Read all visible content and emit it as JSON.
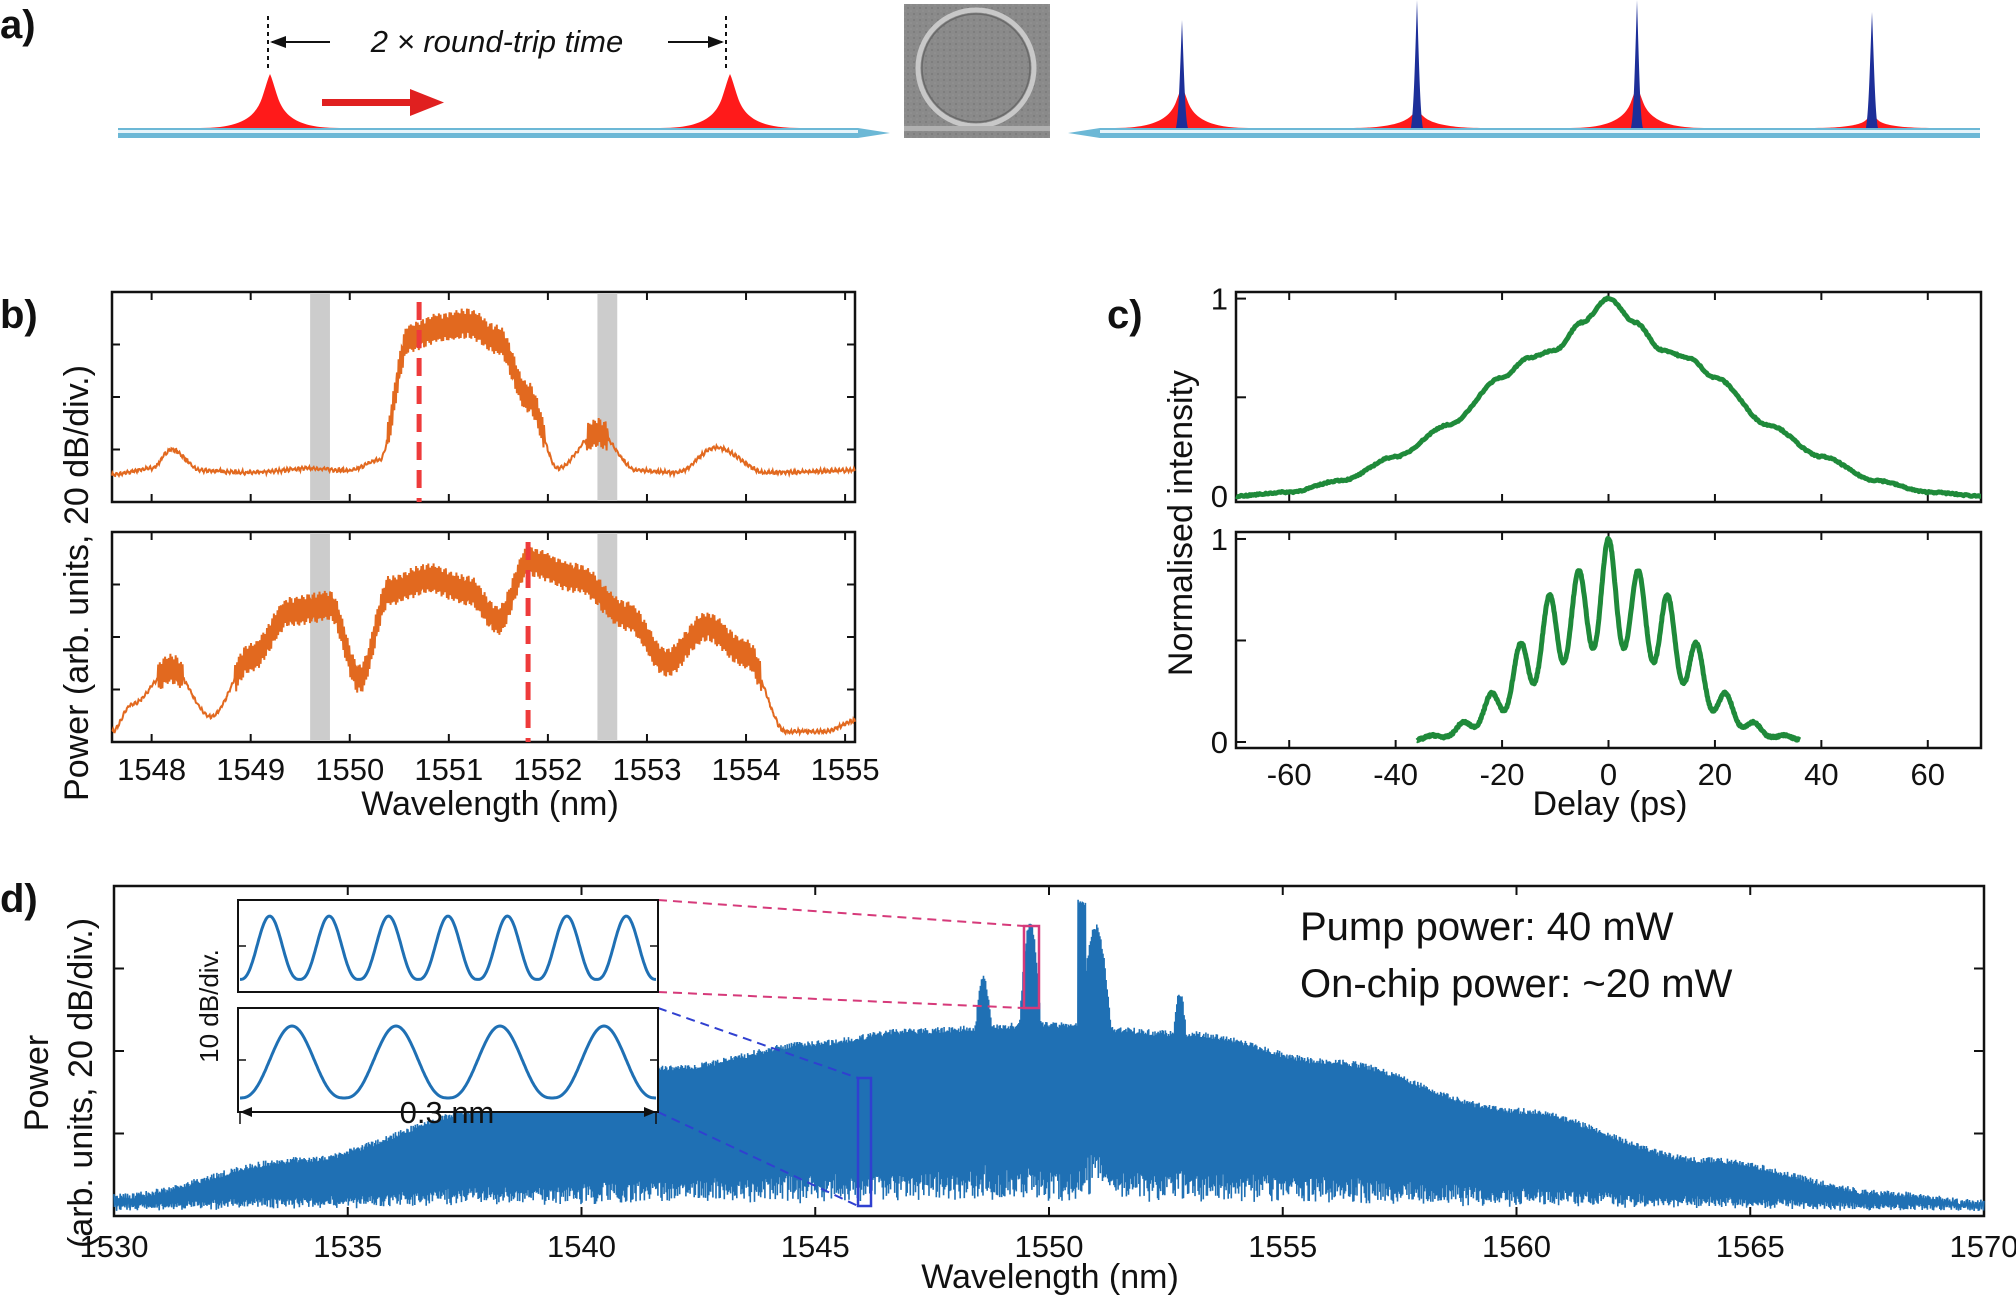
{
  "panels": {
    "a": "a)",
    "b": "b)",
    "c": "c)",
    "d": "d)"
  },
  "colors": {
    "spectrum": "#e2691f",
    "autocorr": "#1f8a3a",
    "comb": "#1f70b4",
    "pulse_red": "#ff1a1a",
    "pulse_blue": "#1d2f99",
    "gray_band": "#cccccc",
    "red_dash": "#ee3b3b",
    "inset_magenta": "#d63a7a",
    "inset_blue": "#3040d0",
    "waveguide": "#6cb8d6"
  },
  "panel_a": {
    "annotation": "2 × round-trip time",
    "arrow_icon": "right-arrow-icon",
    "ring_icon": "microring-resonator-icon"
  },
  "chart_data": [
    {
      "id": "b-top",
      "type": "line",
      "series_color": "#e2691f",
      "xlim": [
        1547.6,
        1555.1
      ],
      "gray_bands": [
        [
          1549.6,
          1549.8
        ],
        [
          1552.5,
          1552.7
        ]
      ],
      "pump_marker_nm": 1550.7,
      "envelope_nm": [
        1547.6,
        1548.0,
        1548.2,
        1548.5,
        1549.0,
        1549.6,
        1550.0,
        1550.3,
        1550.6,
        1550.9,
        1551.2,
        1551.5,
        1551.8,
        1552.1,
        1552.5,
        1552.9,
        1553.3,
        1553.7,
        1554.2,
        1555.1
      ],
      "envelope_level": [
        0.13,
        0.16,
        0.25,
        0.15,
        0.14,
        0.16,
        0.15,
        0.2,
        0.78,
        0.83,
        0.85,
        0.77,
        0.5,
        0.16,
        0.33,
        0.15,
        0.14,
        0.26,
        0.14,
        0.15
      ],
      "ylabel": "Power (arb. units, 20 dB/div.)"
    },
    {
      "id": "b-bottom",
      "type": "line",
      "series_color": "#e2691f",
      "xlim": [
        1547.6,
        1555.1
      ],
      "xticks": [
        1548,
        1549,
        1550,
        1551,
        1552,
        1553,
        1554,
        1555
      ],
      "xlabel": "Wavelength (nm)",
      "gray_bands": [
        [
          1549.6,
          1549.8
        ],
        [
          1552.5,
          1552.7
        ]
      ],
      "pump_marker_nm": 1551.8,
      "envelope_nm": [
        1547.6,
        1547.8,
        1548.2,
        1548.6,
        1549.0,
        1549.4,
        1549.8,
        1550.1,
        1550.4,
        1550.8,
        1551.2,
        1551.5,
        1551.8,
        1552.3,
        1552.8,
        1553.2,
        1553.6,
        1554.0,
        1554.4,
        1554.8,
        1555.1
      ],
      "envelope_level": [
        0.05,
        0.18,
        0.35,
        0.12,
        0.4,
        0.62,
        0.65,
        0.3,
        0.72,
        0.78,
        0.72,
        0.58,
        0.86,
        0.78,
        0.6,
        0.38,
        0.55,
        0.42,
        0.05,
        0.05,
        0.1
      ]
    },
    {
      "id": "c-top",
      "type": "line",
      "series_color": "#1f8a3a",
      "xlim": [
        -70,
        70
      ],
      "ylim": [
        0,
        1
      ],
      "yticks": [
        0,
        1
      ],
      "x": [
        -70,
        -60,
        -50,
        -40,
        -30,
        -20,
        -15,
        -10,
        -5,
        0,
        5,
        10,
        15,
        20,
        30,
        40,
        50,
        60,
        70
      ],
      "y": [
        0.0,
        0.02,
        0.08,
        0.2,
        0.36,
        0.6,
        0.7,
        0.74,
        0.88,
        1.0,
        0.88,
        0.74,
        0.7,
        0.6,
        0.36,
        0.2,
        0.08,
        0.02,
        0.0
      ],
      "ylabel": "Normalised intensity"
    },
    {
      "id": "c-bottom",
      "type": "line",
      "series_color": "#1f8a3a",
      "xlim": [
        -70,
        70
      ],
      "ylim": [
        0,
        1
      ],
      "xticks": [
        -60,
        -40,
        -20,
        0,
        20,
        40,
        60
      ],
      "yticks": [
        0,
        1
      ],
      "xlabel": "Delay (ps)",
      "fringe_period_ps": 5.6,
      "envelope_x": [
        -36,
        -30,
        -25,
        -20,
        -15,
        -10,
        -5,
        0,
        5,
        10,
        15,
        20,
        25,
        30,
        36
      ],
      "envelope_y": [
        0.02,
        0.05,
        0.15,
        0.3,
        0.55,
        0.75,
        0.85,
        1.0,
        0.85,
        0.75,
        0.55,
        0.3,
        0.15,
        0.05,
        0.02
      ]
    },
    {
      "id": "d",
      "type": "line",
      "series_color": "#1f70b4",
      "xlim": [
        1530,
        1570
      ],
      "xticks": [
        1530,
        1535,
        1540,
        1545,
        1550,
        1555,
        1560,
        1565,
        1570
      ],
      "xlabel": "Wavelength (nm)",
      "ylabel_1": "Power",
      "ylabel_2": "(arb. units, 20 dB/div.)",
      "annotations": [
        "Pump power: 40 mW",
        "On-chip power: ~20 mW"
      ],
      "comb_envelope_nm": [
        1530,
        1534,
        1538,
        1542,
        1545,
        1547,
        1550,
        1553,
        1556,
        1560,
        1564,
        1568,
        1570
      ],
      "comb_envelope_level": [
        0.04,
        0.16,
        0.32,
        0.46,
        0.54,
        0.58,
        0.6,
        0.57,
        0.48,
        0.32,
        0.16,
        0.05,
        0.02
      ],
      "pump_peak_nm": 1550.7,
      "inset": {
        "ylabel": "10 dB/div.",
        "span_label": "0.3 nm",
        "top_periods": 7,
        "bottom_periods": 4
      }
    }
  ]
}
